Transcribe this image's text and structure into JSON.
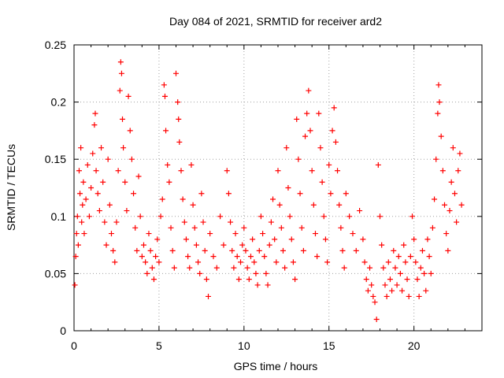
{
  "chart_data": {
    "type": "scatter",
    "title": "Day 084 of 2021, SRMTID for receiver ard2",
    "xlabel": "GPS time / hours",
    "ylabel": "SRMTID / TECUs",
    "xlim": [
      0,
      24
    ],
    "ylim": [
      0,
      0.25
    ],
    "xticks": [
      0,
      5,
      10,
      15,
      20
    ],
    "yticks": [
      0,
      0.05,
      0.1,
      0.15,
      0.2,
      0.25
    ],
    "ytick_labels": [
      "0",
      "0.05",
      "0.1",
      "0.15",
      "0.2",
      "0.25"
    ],
    "grid": true,
    "marker": "+",
    "color": "#ff0000",
    "series": [
      {
        "name": "SRMTID",
        "points": [
          [
            0.05,
            0.04
          ],
          [
            0.1,
            0.065
          ],
          [
            0.15,
            0.085
          ],
          [
            0.2,
            0.1
          ],
          [
            0.25,
            0.075
          ],
          [
            0.3,
            0.14
          ],
          [
            0.35,
            0.12
          ],
          [
            0.4,
            0.16
          ],
          [
            0.45,
            0.095
          ],
          [
            0.5,
            0.11
          ],
          [
            0.55,
            0.13
          ],
          [
            0.6,
            0.085
          ],
          [
            0.7,
            0.115
          ],
          [
            0.8,
            0.145
          ],
          [
            0.9,
            0.1
          ],
          [
            1.0,
            0.125
          ],
          [
            1.1,
            0.155
          ],
          [
            1.2,
            0.18
          ],
          [
            1.25,
            0.19
          ],
          [
            1.3,
            0.14
          ],
          [
            1.4,
            0.12
          ],
          [
            1.5,
            0.105
          ],
          [
            1.6,
            0.16
          ],
          [
            1.7,
            0.13
          ],
          [
            1.8,
            0.095
          ],
          [
            1.9,
            0.075
          ],
          [
            2.0,
            0.15
          ],
          [
            2.1,
            0.11
          ],
          [
            2.2,
            0.085
          ],
          [
            2.3,
            0.07
          ],
          [
            2.4,
            0.06
          ],
          [
            2.5,
            0.095
          ],
          [
            2.6,
            0.14
          ],
          [
            2.7,
            0.21
          ],
          [
            2.75,
            0.235
          ],
          [
            2.8,
            0.225
          ],
          [
            2.85,
            0.185
          ],
          [
            2.9,
            0.16
          ],
          [
            3.0,
            0.13
          ],
          [
            3.1,
            0.105
          ],
          [
            3.2,
            0.205
          ],
          [
            3.3,
            0.175
          ],
          [
            3.4,
            0.15
          ],
          [
            3.5,
            0.12
          ],
          [
            3.6,
            0.09
          ],
          [
            3.7,
            0.07
          ],
          [
            3.8,
            0.135
          ],
          [
            3.9,
            0.1
          ],
          [
            4.0,
            0.065
          ],
          [
            4.1,
            0.075
          ],
          [
            4.2,
            0.06
          ],
          [
            4.3,
            0.05
          ],
          [
            4.4,
            0.085
          ],
          [
            4.5,
            0.07
          ],
          [
            4.6,
            0.055
          ],
          [
            4.7,
            0.045
          ],
          [
            4.8,
            0.065
          ],
          [
            4.9,
            0.08
          ],
          [
            5.0,
            0.06
          ],
          [
            5.1,
            0.1
          ],
          [
            5.2,
            0.115
          ],
          [
            5.3,
            0.215
          ],
          [
            5.35,
            0.205
          ],
          [
            5.4,
            0.175
          ],
          [
            5.5,
            0.145
          ],
          [
            5.6,
            0.13
          ],
          [
            5.7,
            0.09
          ],
          [
            5.8,
            0.07
          ],
          [
            5.9,
            0.055
          ],
          [
            6.0,
            0.225
          ],
          [
            6.1,
            0.2
          ],
          [
            6.15,
            0.185
          ],
          [
            6.2,
            0.165
          ],
          [
            6.3,
            0.14
          ],
          [
            6.4,
            0.115
          ],
          [
            6.5,
            0.095
          ],
          [
            6.6,
            0.08
          ],
          [
            6.7,
            0.065
          ],
          [
            6.8,
            0.055
          ],
          [
            6.9,
            0.145
          ],
          [
            7.0,
            0.11
          ],
          [
            7.1,
            0.09
          ],
          [
            7.2,
            0.075
          ],
          [
            7.3,
            0.06
          ],
          [
            7.4,
            0.05
          ],
          [
            7.5,
            0.12
          ],
          [
            7.6,
            0.095
          ],
          [
            7.7,
            0.07
          ],
          [
            7.8,
            0.045
          ],
          [
            7.9,
            0.03
          ],
          [
            8.0,
            0.085
          ],
          [
            8.2,
            0.065
          ],
          [
            8.4,
            0.055
          ],
          [
            8.6,
            0.1
          ],
          [
            8.8,
            0.075
          ],
          [
            9.0,
            0.14
          ],
          [
            9.1,
            0.12
          ],
          [
            9.2,
            0.095
          ],
          [
            9.3,
            0.07
          ],
          [
            9.4,
            0.055
          ],
          [
            9.5,
            0.085
          ],
          [
            9.6,
            0.065
          ],
          [
            9.7,
            0.045
          ],
          [
            9.8,
            0.06
          ],
          [
            9.9,
            0.075
          ],
          [
            10.0,
            0.09
          ],
          [
            10.1,
            0.07
          ],
          [
            10.2,
            0.055
          ],
          [
            10.3,
            0.045
          ],
          [
            10.4,
            0.065
          ],
          [
            10.5,
            0.08
          ],
          [
            10.6,
            0.06
          ],
          [
            10.7,
            0.05
          ],
          [
            10.8,
            0.04
          ],
          [
            10.9,
            0.07
          ],
          [
            11.0,
            0.1
          ],
          [
            11.1,
            0.085
          ],
          [
            11.2,
            0.065
          ],
          [
            11.3,
            0.05
          ],
          [
            11.4,
            0.04
          ],
          [
            11.5,
            0.075
          ],
          [
            11.6,
            0.095
          ],
          [
            11.7,
            0.115
          ],
          [
            11.8,
            0.08
          ],
          [
            11.9,
            0.06
          ],
          [
            12.0,
            0.14
          ],
          [
            12.1,
            0.11
          ],
          [
            12.2,
            0.09
          ],
          [
            12.3,
            0.07
          ],
          [
            12.4,
            0.055
          ],
          [
            12.5,
            0.16
          ],
          [
            12.6,
            0.125
          ],
          [
            12.7,
            0.1
          ],
          [
            12.8,
            0.08
          ],
          [
            12.9,
            0.06
          ],
          [
            13.0,
            0.045
          ],
          [
            13.1,
            0.185
          ],
          [
            13.2,
            0.15
          ],
          [
            13.3,
            0.12
          ],
          [
            13.4,
            0.09
          ],
          [
            13.5,
            0.07
          ],
          [
            13.6,
            0.17
          ],
          [
            13.7,
            0.19
          ],
          [
            13.8,
            0.21
          ],
          [
            13.9,
            0.175
          ],
          [
            14.0,
            0.14
          ],
          [
            14.1,
            0.11
          ],
          [
            14.2,
            0.085
          ],
          [
            14.3,
            0.065
          ],
          [
            14.4,
            0.19
          ],
          [
            14.5,
            0.16
          ],
          [
            14.6,
            0.13
          ],
          [
            14.7,
            0.1
          ],
          [
            14.8,
            0.08
          ],
          [
            14.9,
            0.06
          ],
          [
            15.0,
            0.145
          ],
          [
            15.1,
            0.12
          ],
          [
            15.2,
            0.175
          ],
          [
            15.3,
            0.195
          ],
          [
            15.4,
            0.165
          ],
          [
            15.5,
            0.14
          ],
          [
            15.6,
            0.11
          ],
          [
            15.7,
            0.09
          ],
          [
            15.8,
            0.07
          ],
          [
            15.9,
            0.055
          ],
          [
            16.0,
            0.12
          ],
          [
            16.2,
            0.1
          ],
          [
            16.4,
            0.085
          ],
          [
            16.6,
            0.07
          ],
          [
            16.8,
            0.105
          ],
          [
            17.0,
            0.08
          ],
          [
            17.1,
            0.06
          ],
          [
            17.2,
            0.045
          ],
          [
            17.3,
            0.035
          ],
          [
            17.4,
            0.055
          ],
          [
            17.5,
            0.04
          ],
          [
            17.6,
            0.03
          ],
          [
            17.7,
            0.025
          ],
          [
            17.8,
            0.01
          ],
          [
            17.9,
            0.145
          ],
          [
            18.0,
            0.1
          ],
          [
            18.1,
            0.075
          ],
          [
            18.2,
            0.055
          ],
          [
            18.3,
            0.04
          ],
          [
            18.4,
            0.03
          ],
          [
            18.5,
            0.06
          ],
          [
            18.6,
            0.045
          ],
          [
            18.7,
            0.035
          ],
          [
            18.8,
            0.07
          ],
          [
            18.9,
            0.055
          ],
          [
            19.0,
            0.04
          ],
          [
            19.1,
            0.065
          ],
          [
            19.2,
            0.05
          ],
          [
            19.3,
            0.035
          ],
          [
            19.4,
            0.075
          ],
          [
            19.5,
            0.06
          ],
          [
            19.6,
            0.045
          ],
          [
            19.7,
            0.03
          ],
          [
            19.8,
            0.065
          ],
          [
            19.9,
            0.1
          ],
          [
            20.0,
            0.08
          ],
          [
            20.1,
            0.06
          ],
          [
            20.2,
            0.045
          ],
          [
            20.3,
            0.03
          ],
          [
            20.4,
            0.055
          ],
          [
            20.5,
            0.07
          ],
          [
            20.6,
            0.05
          ],
          [
            20.7,
            0.035
          ],
          [
            20.8,
            0.08
          ],
          [
            20.9,
            0.065
          ],
          [
            21.0,
            0.05
          ],
          [
            21.1,
            0.09
          ],
          [
            21.2,
            0.115
          ],
          [
            21.3,
            0.15
          ],
          [
            21.4,
            0.19
          ],
          [
            21.45,
            0.215
          ],
          [
            21.5,
            0.2
          ],
          [
            21.6,
            0.17
          ],
          [
            21.7,
            0.14
          ],
          [
            21.8,
            0.11
          ],
          [
            21.9,
            0.085
          ],
          [
            22.0,
            0.07
          ],
          [
            22.1,
            0.105
          ],
          [
            22.2,
            0.13
          ],
          [
            22.3,
            0.16
          ],
          [
            22.4,
            0.12
          ],
          [
            22.5,
            0.095
          ],
          [
            22.6,
            0.14
          ],
          [
            22.7,
            0.155
          ],
          [
            22.8,
            0.11
          ]
        ]
      }
    ]
  }
}
